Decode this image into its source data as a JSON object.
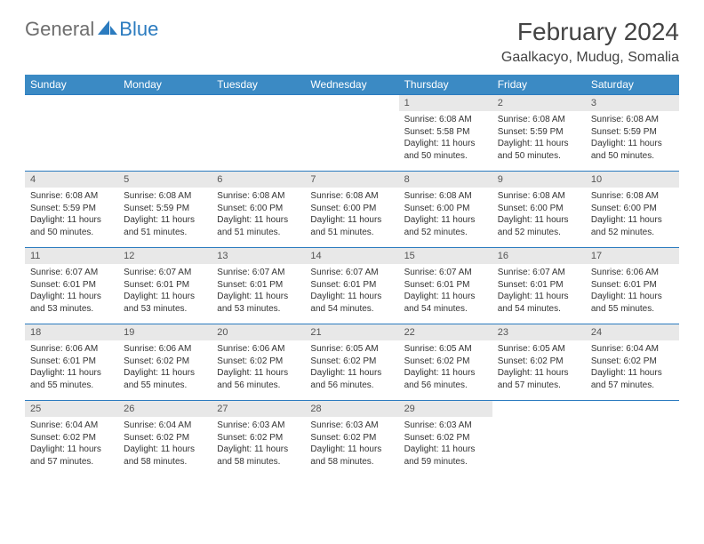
{
  "brand": {
    "general": "General",
    "blue": "Blue"
  },
  "title": "February 2024",
  "location": "Gaalkacyo, Mudug, Somalia",
  "colors": {
    "header_bg": "#3b8ac4",
    "header_text": "#ffffff",
    "daynum_bg": "#e8e8e8",
    "border": "#2b7bbf",
    "body_text": "#333333",
    "title_text": "#444444",
    "logo_gray": "#6e6e6e",
    "logo_blue": "#2b7bbf"
  },
  "weekdays": [
    "Sunday",
    "Monday",
    "Tuesday",
    "Wednesday",
    "Thursday",
    "Friday",
    "Saturday"
  ],
  "weeks": [
    [
      null,
      null,
      null,
      null,
      {
        "n": "1",
        "sr": "Sunrise: 6:08 AM",
        "ss": "Sunset: 5:58 PM",
        "dl": "Daylight: 11 hours and 50 minutes."
      },
      {
        "n": "2",
        "sr": "Sunrise: 6:08 AM",
        "ss": "Sunset: 5:59 PM",
        "dl": "Daylight: 11 hours and 50 minutes."
      },
      {
        "n": "3",
        "sr": "Sunrise: 6:08 AM",
        "ss": "Sunset: 5:59 PM",
        "dl": "Daylight: 11 hours and 50 minutes."
      }
    ],
    [
      {
        "n": "4",
        "sr": "Sunrise: 6:08 AM",
        "ss": "Sunset: 5:59 PM",
        "dl": "Daylight: 11 hours and 50 minutes."
      },
      {
        "n": "5",
        "sr": "Sunrise: 6:08 AM",
        "ss": "Sunset: 5:59 PM",
        "dl": "Daylight: 11 hours and 51 minutes."
      },
      {
        "n": "6",
        "sr": "Sunrise: 6:08 AM",
        "ss": "Sunset: 6:00 PM",
        "dl": "Daylight: 11 hours and 51 minutes."
      },
      {
        "n": "7",
        "sr": "Sunrise: 6:08 AM",
        "ss": "Sunset: 6:00 PM",
        "dl": "Daylight: 11 hours and 51 minutes."
      },
      {
        "n": "8",
        "sr": "Sunrise: 6:08 AM",
        "ss": "Sunset: 6:00 PM",
        "dl": "Daylight: 11 hours and 52 minutes."
      },
      {
        "n": "9",
        "sr": "Sunrise: 6:08 AM",
        "ss": "Sunset: 6:00 PM",
        "dl": "Daylight: 11 hours and 52 minutes."
      },
      {
        "n": "10",
        "sr": "Sunrise: 6:08 AM",
        "ss": "Sunset: 6:00 PM",
        "dl": "Daylight: 11 hours and 52 minutes."
      }
    ],
    [
      {
        "n": "11",
        "sr": "Sunrise: 6:07 AM",
        "ss": "Sunset: 6:01 PM",
        "dl": "Daylight: 11 hours and 53 minutes."
      },
      {
        "n": "12",
        "sr": "Sunrise: 6:07 AM",
        "ss": "Sunset: 6:01 PM",
        "dl": "Daylight: 11 hours and 53 minutes."
      },
      {
        "n": "13",
        "sr": "Sunrise: 6:07 AM",
        "ss": "Sunset: 6:01 PM",
        "dl": "Daylight: 11 hours and 53 minutes."
      },
      {
        "n": "14",
        "sr": "Sunrise: 6:07 AM",
        "ss": "Sunset: 6:01 PM",
        "dl": "Daylight: 11 hours and 54 minutes."
      },
      {
        "n": "15",
        "sr": "Sunrise: 6:07 AM",
        "ss": "Sunset: 6:01 PM",
        "dl": "Daylight: 11 hours and 54 minutes."
      },
      {
        "n": "16",
        "sr": "Sunrise: 6:07 AM",
        "ss": "Sunset: 6:01 PM",
        "dl": "Daylight: 11 hours and 54 minutes."
      },
      {
        "n": "17",
        "sr": "Sunrise: 6:06 AM",
        "ss": "Sunset: 6:01 PM",
        "dl": "Daylight: 11 hours and 55 minutes."
      }
    ],
    [
      {
        "n": "18",
        "sr": "Sunrise: 6:06 AM",
        "ss": "Sunset: 6:01 PM",
        "dl": "Daylight: 11 hours and 55 minutes."
      },
      {
        "n": "19",
        "sr": "Sunrise: 6:06 AM",
        "ss": "Sunset: 6:02 PM",
        "dl": "Daylight: 11 hours and 55 minutes."
      },
      {
        "n": "20",
        "sr": "Sunrise: 6:06 AM",
        "ss": "Sunset: 6:02 PM",
        "dl": "Daylight: 11 hours and 56 minutes."
      },
      {
        "n": "21",
        "sr": "Sunrise: 6:05 AM",
        "ss": "Sunset: 6:02 PM",
        "dl": "Daylight: 11 hours and 56 minutes."
      },
      {
        "n": "22",
        "sr": "Sunrise: 6:05 AM",
        "ss": "Sunset: 6:02 PM",
        "dl": "Daylight: 11 hours and 56 minutes."
      },
      {
        "n": "23",
        "sr": "Sunrise: 6:05 AM",
        "ss": "Sunset: 6:02 PM",
        "dl": "Daylight: 11 hours and 57 minutes."
      },
      {
        "n": "24",
        "sr": "Sunrise: 6:04 AM",
        "ss": "Sunset: 6:02 PM",
        "dl": "Daylight: 11 hours and 57 minutes."
      }
    ],
    [
      {
        "n": "25",
        "sr": "Sunrise: 6:04 AM",
        "ss": "Sunset: 6:02 PM",
        "dl": "Daylight: 11 hours and 57 minutes."
      },
      {
        "n": "26",
        "sr": "Sunrise: 6:04 AM",
        "ss": "Sunset: 6:02 PM",
        "dl": "Daylight: 11 hours and 58 minutes."
      },
      {
        "n": "27",
        "sr": "Sunrise: 6:03 AM",
        "ss": "Sunset: 6:02 PM",
        "dl": "Daylight: 11 hours and 58 minutes."
      },
      {
        "n": "28",
        "sr": "Sunrise: 6:03 AM",
        "ss": "Sunset: 6:02 PM",
        "dl": "Daylight: 11 hours and 58 minutes."
      },
      {
        "n": "29",
        "sr": "Sunrise: 6:03 AM",
        "ss": "Sunset: 6:02 PM",
        "dl": "Daylight: 11 hours and 59 minutes."
      },
      null,
      null
    ]
  ]
}
